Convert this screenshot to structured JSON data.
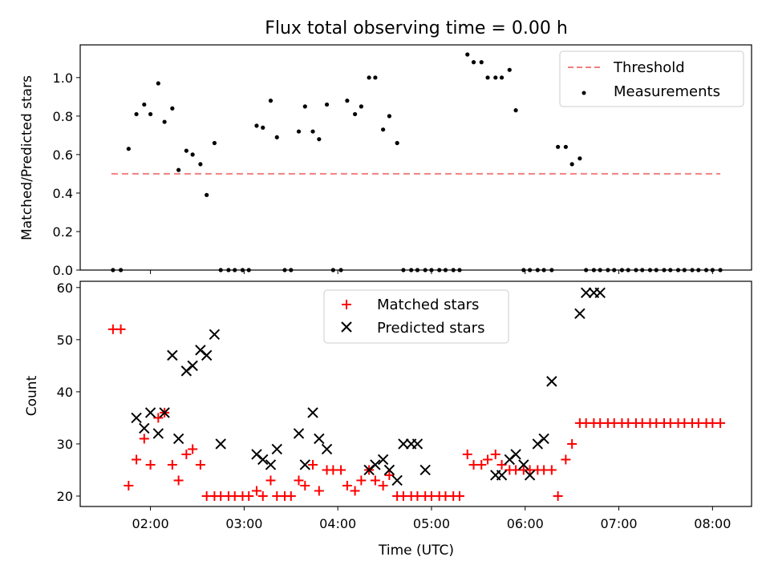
{
  "figure": {
    "title": "Flux total observing time = 0.00 h"
  },
  "chart_data": [
    {
      "type": "scatter",
      "panel": "top",
      "title": "Flux total observing time = 0.00 h",
      "xlabel": "",
      "ylabel": "Matched/Predicted stars",
      "xlim": [
        "01:15",
        "08:25"
      ],
      "ylim": [
        0,
        1.17
      ],
      "yticks": [
        "0.0",
        "0.2",
        "0.4",
        "0.6",
        "0.8",
        "1.0"
      ],
      "xticks": [
        "02:00",
        "03:00",
        "04:00",
        "05:00",
        "06:00",
        "07:00",
        "08:00"
      ],
      "legend_position": "top-right",
      "colors": {
        "threshold": "#f08080",
        "measurements": "#000000"
      },
      "threshold": {
        "name": "Threshold",
        "y": 0.5,
        "x": [
          "01:35",
          "08:05"
        ],
        "style": "dashed"
      },
      "series": [
        {
          "name": "Measurements",
          "x": [
            "01:36",
            "01:41",
            "01:46",
            "01:51",
            "01:56",
            "02:00",
            "02:05",
            "02:09",
            "02:14",
            "02:18",
            "02:23",
            "02:27",
            "02:32",
            "02:36",
            "02:41",
            "02:45",
            "02:50",
            "02:54",
            "02:59",
            "03:03",
            "03:08",
            "03:12",
            "03:17",
            "03:21",
            "03:26",
            "03:30",
            "03:35",
            "03:39",
            "03:44",
            "03:48",
            "03:53",
            "03:57",
            "04:02",
            "04:06",
            "04:11",
            "04:15",
            "04:20",
            "04:24",
            "04:29",
            "04:33",
            "04:38",
            "04:42",
            "04:47",
            "04:51",
            "04:56",
            "05:00",
            "05:05",
            "05:09",
            "05:14",
            "05:18",
            "05:23",
            "05:27",
            "05:32",
            "05:36",
            "05:41",
            "05:45",
            "05:50",
            "05:54",
            "05:59",
            "06:03",
            "06:08",
            "06:12",
            "06:17",
            "06:21",
            "06:26",
            "06:30",
            "06:35",
            "06:39",
            "06:44",
            "06:48",
            "06:53",
            "06:57",
            "07:02",
            "07:06",
            "07:11",
            "07:15",
            "07:20",
            "07:24",
            "07:29",
            "07:33",
            "07:38",
            "07:42",
            "07:47",
            "07:51",
            "07:56",
            "08:00",
            "08:05"
          ],
          "y": [
            0,
            0,
            0.63,
            0.81,
            0.86,
            0.81,
            0.97,
            0.77,
            0.84,
            0.52,
            0.62,
            0.6,
            0.55,
            0.39,
            0.66,
            0,
            0,
            0,
            0,
            0,
            0.75,
            0.74,
            0.88,
            0.69,
            0,
            0,
            0.72,
            0.85,
            0.72,
            0.68,
            0.86,
            0,
            0,
            0.88,
            0.81,
            0.85,
            1.0,
            1.0,
            0.73,
            0.8,
            0.66,
            0,
            0,
            0,
            0,
            0,
            0,
            0,
            0,
            0,
            1.12,
            1.08,
            1.08,
            1.0,
            1.0,
            1.0,
            1.04,
            0.83,
            0,
            0,
            0,
            0,
            0,
            0.64,
            0.64,
            0.55,
            0.58,
            0,
            0,
            0,
            0,
            0,
            0,
            0,
            0,
            0,
            0,
            0,
            0,
            0,
            0,
            0,
            0,
            0,
            0,
            0,
            0
          ]
        }
      ]
    },
    {
      "type": "scatter",
      "panel": "bottom",
      "xlabel": "Time (UTC)",
      "ylabel": "Count",
      "xlim": [
        "01:15",
        "08:25"
      ],
      "ylim": [
        18,
        61.2
      ],
      "yticks": [
        "20",
        "30",
        "40",
        "50",
        "60"
      ],
      "xticks": [
        "02:00",
        "03:00",
        "04:00",
        "05:00",
        "06:00",
        "07:00",
        "08:00"
      ],
      "legend_position": "upper-center",
      "colors": {
        "matched": "#ff0000",
        "predicted": "#000000"
      },
      "series": [
        {
          "name": "Matched stars",
          "x": [
            "01:36",
            "01:41",
            "01:46",
            "01:51",
            "01:56",
            "02:00",
            "02:05",
            "02:09",
            "02:14",
            "02:18",
            "02:23",
            "02:27",
            "02:32",
            "02:36",
            "02:41",
            "02:45",
            "02:50",
            "02:54",
            "02:59",
            "03:03",
            "03:08",
            "03:12",
            "03:17",
            "03:21",
            "03:26",
            "03:30",
            "03:35",
            "03:39",
            "03:44",
            "03:48",
            "03:53",
            "03:57",
            "04:02",
            "04:06",
            "04:11",
            "04:15",
            "04:20",
            "04:24",
            "04:29",
            "04:33",
            "04:38",
            "04:42",
            "04:47",
            "04:51",
            "04:56",
            "05:00",
            "05:05",
            "05:09",
            "05:14",
            "05:18",
            "05:23",
            "05:27",
            "05:32",
            "05:36",
            "05:41",
            "05:45",
            "05:50",
            "05:54",
            "05:59",
            "06:03",
            "06:08",
            "06:12",
            "06:17",
            "06:21",
            "06:26",
            "06:30",
            "06:35",
            "06:39",
            "06:44",
            "06:48",
            "06:53",
            "06:57",
            "07:02",
            "07:06",
            "07:11",
            "07:15",
            "07:20",
            "07:24",
            "07:29",
            "07:33",
            "07:38",
            "07:42",
            "07:47",
            "07:51",
            "07:56",
            "08:00",
            "08:05"
          ],
          "y": [
            52,
            52,
            22,
            27,
            31,
            26,
            35,
            36,
            26,
            23,
            28,
            29,
            26,
            20,
            20,
            20,
            20,
            20,
            20,
            20,
            21,
            20,
            23,
            20,
            20,
            20,
            23,
            22,
            26,
            21,
            25,
            25,
            25,
            22,
            21,
            23,
            25,
            23,
            22,
            24,
            20,
            20,
            20,
            20,
            20,
            20,
            20,
            20,
            20,
            20,
            28,
            26,
            26,
            27,
            28,
            26,
            25,
            25,
            25,
            25,
            25,
            25,
            25,
            20,
            27,
            30,
            34,
            34,
            34,
            34,
            34,
            34,
            34,
            34,
            34,
            34,
            34,
            34,
            34,
            34,
            34,
            34,
            34,
            34,
            34,
            34,
            34
          ]
        },
        {
          "name": "Predicted stars",
          "x": [
            "01:51",
            "01:56",
            "02:00",
            "02:05",
            "02:09",
            "02:14",
            "02:18",
            "02:23",
            "02:27",
            "02:32",
            "02:36",
            "02:41",
            "02:45",
            "03:08",
            "03:12",
            "03:17",
            "03:21",
            "03:35",
            "03:39",
            "03:44",
            "03:48",
            "03:53",
            "04:20",
            "04:24",
            "04:29",
            "04:33",
            "04:38",
            "04:42",
            "04:47",
            "04:51",
            "04:56",
            "05:41",
            "05:45",
            "05:50",
            "05:54",
            "05:59",
            "06:03",
            "06:08",
            "06:12",
            "06:17",
            "06:35",
            "06:39",
            "06:44",
            "06:48"
          ],
          "y": [
            35,
            33,
            36,
            32,
            36,
            47,
            31,
            44,
            45,
            48,
            47,
            51,
            30,
            28,
            27,
            26,
            29,
            32,
            26,
            36,
            31,
            29,
            25,
            26,
            27,
            25,
            23,
            30,
            30,
            30,
            25,
            24,
            24,
            27,
            28,
            26,
            24,
            30,
            31,
            42,
            55,
            59,
            59,
            59
          ],
          "y_actual": [
            35,
            33,
            36,
            32,
            36,
            47,
            31,
            44,
            45,
            48,
            47,
            51,
            30,
            28,
            27,
            26,
            29,
            32,
            26,
            36,
            31,
            29,
            25,
            26,
            27,
            25,
            23,
            30,
            30,
            30,
            25,
            24,
            24,
            27,
            28,
            26,
            24,
            30,
            31,
            42,
            55,
            59,
            59,
            59
          ]
        }
      ]
    }
  ],
  "axes_labels": {
    "top_ylabel": "Matched/Predicted stars",
    "bottom_ylabel": "Count",
    "bottom_xlabel": "Time (UTC)"
  },
  "legend": {
    "top": [
      "Threshold",
      "Measurements"
    ],
    "bottom": [
      "Matched stars",
      "Predicted stars"
    ]
  }
}
